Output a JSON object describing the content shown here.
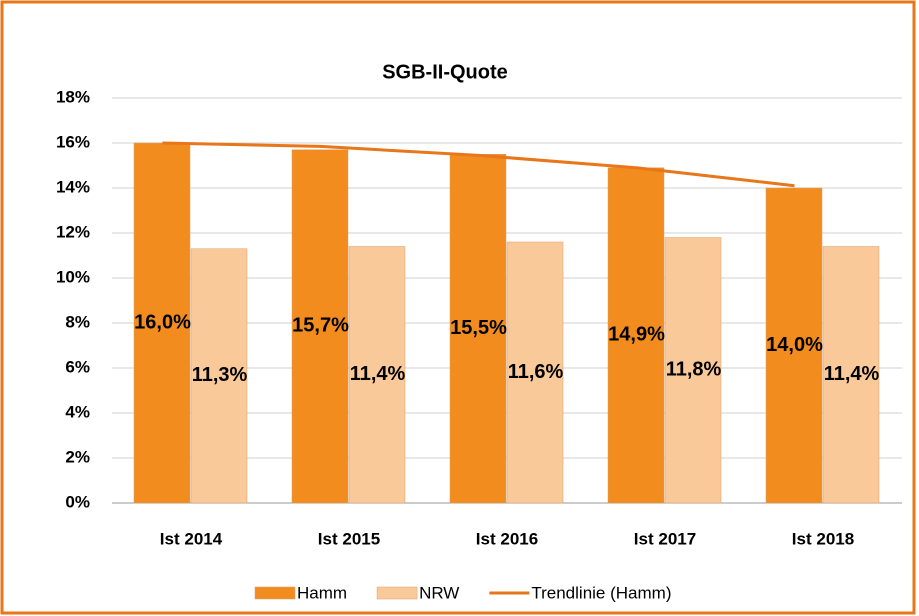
{
  "chart_data": {
    "type": "bar",
    "title": "SGB-II-Quote",
    "categories": [
      "Ist 2014",
      "Ist 2015",
      "Ist 2016",
      "Ist 2017",
      "Ist 2018"
    ],
    "series": [
      {
        "name": "Hamm",
        "color": "#f28c1e",
        "values": [
          16.0,
          15.7,
          15.5,
          14.9,
          14.0
        ],
        "value_labels": [
          "16,0%",
          "15,7%",
          "15,5%",
          "14,9%",
          "14,0%"
        ]
      },
      {
        "name": "NRW",
        "color": "#f9c99a",
        "values": [
          11.3,
          11.4,
          11.6,
          11.8,
          11.4
        ],
        "value_labels": [
          "11,3%",
          "11,4%",
          "11,6%",
          "11,8%",
          "11,4%"
        ]
      },
      {
        "name": "Trendlinie (Hamm)",
        "type": "line",
        "color": "#e8761a",
        "values": [
          16.0,
          15.85,
          15.45,
          14.9,
          14.1
        ]
      }
    ],
    "ylim": [
      0,
      18
    ],
    "yticks": [
      {
        "value": 0,
        "label": "0%"
      },
      {
        "value": 2,
        "label": "2%"
      },
      {
        "value": 4,
        "label": "4%"
      },
      {
        "value": 6,
        "label": "6%"
      },
      {
        "value": 8,
        "label": "8%"
      },
      {
        "value": 10,
        "label": "10%"
      },
      {
        "value": 12,
        "label": "12%"
      },
      {
        "value": 14,
        "label": "14%"
      },
      {
        "value": 16,
        "label": "16%"
      },
      {
        "value": 18,
        "label": "18%"
      }
    ],
    "grid": true,
    "legend": "bottom"
  }
}
